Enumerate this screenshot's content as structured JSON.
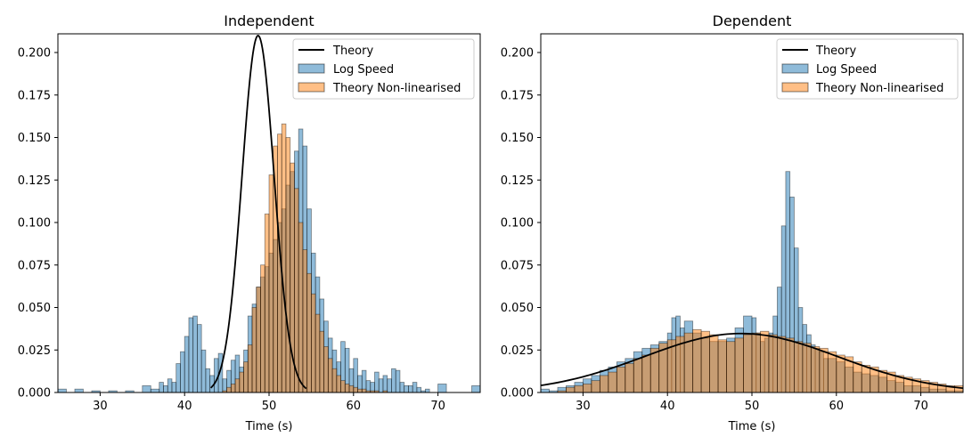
{
  "colors": {
    "log_speed_fill": "#1f77b4",
    "non_linearised_fill": "#ff7f0e",
    "theory_line": "#000000",
    "bar_edge": "#000000"
  },
  "chart_data": [
    {
      "type": "area",
      "title": "Independent",
      "xlabel": "Time (s)",
      "ylabel": "",
      "xlim": [
        25,
        75
      ],
      "ylim": [
        0,
        0.211
      ],
      "xticks": [
        30,
        40,
        50,
        60,
        70
      ],
      "yticks": [
        0.0,
        0.025,
        0.05,
        0.075,
        0.1,
        0.125,
        0.15,
        0.175,
        0.2
      ],
      "xtick_labels": [
        "30",
        "40",
        "50",
        "60",
        "70"
      ],
      "ytick_labels": [
        "0.000",
        "0.025",
        "0.050",
        "0.075",
        "0.100",
        "0.125",
        "0.150",
        "0.175",
        "0.200"
      ],
      "grid": false,
      "legend_position": "top-right",
      "legend": [
        "Theory",
        "Log Speed",
        "Theory Non-linearised"
      ],
      "series": [
        {
          "name": "Log Speed",
          "kind": "step-histogram",
          "x": [
            25,
            26,
            27,
            28,
            29,
            30,
            31,
            32,
            33,
            34,
            35,
            36,
            37,
            37.5,
            38,
            38.5,
            39,
            39.5,
            40,
            40.5,
            41,
            41.5,
            42,
            42.5,
            43,
            43.5,
            44,
            44.5,
            45,
            45.5,
            46,
            46.5,
            47,
            47.5,
            48,
            48.5,
            49,
            49.5,
            50,
            50.5,
            51,
            51.5,
            52,
            52.5,
            53,
            53.5,
            54,
            54.5,
            55,
            55.5,
            56,
            56.5,
            57,
            57.5,
            58,
            58.5,
            59,
            59.5,
            60,
            60.5,
            61,
            61.5,
            62,
            62.5,
            63,
            63.5,
            64,
            64.5,
            65,
            65.5,
            66,
            66.5,
            67,
            67.5,
            68,
            68.5,
            69,
            70,
            71,
            72,
            73,
            74,
            75
          ],
          "values": [
            0.002,
            0.0,
            0.002,
            0.0,
            0.001,
            0.0,
            0.001,
            0.0,
            0.001,
            0.0,
            0.004,
            0.002,
            0.006,
            0.004,
            0.008,
            0.006,
            0.017,
            0.024,
            0.033,
            0.044,
            0.045,
            0.04,
            0.025,
            0.014,
            0.01,
            0.02,
            0.023,
            0.008,
            0.013,
            0.019,
            0.022,
            0.015,
            0.025,
            0.045,
            0.052,
            0.062,
            0.068,
            0.074,
            0.082,
            0.09,
            0.1,
            0.108,
            0.122,
            0.13,
            0.142,
            0.155,
            0.145,
            0.108,
            0.082,
            0.068,
            0.055,
            0.042,
            0.032,
            0.025,
            0.018,
            0.03,
            0.026,
            0.014,
            0.02,
            0.01,
            0.013,
            0.007,
            0.006,
            0.012,
            0.008,
            0.01,
            0.008,
            0.014,
            0.013,
            0.006,
            0.004,
            0.004,
            0.006,
            0.003,
            0.001,
            0.002,
            0.0,
            0.005,
            0.0,
            0.0,
            0.0,
            0.004,
            0.0
          ]
        },
        {
          "name": "Theory Non-linearised",
          "kind": "step-histogram",
          "x": [
            44.5,
            45,
            45.5,
            46,
            46.5,
            47,
            47.5,
            48,
            48.5,
            49,
            49.5,
            50,
            50.5,
            51,
            51.5,
            52,
            52.5,
            53,
            53.5,
            54,
            54.5,
            55,
            55.5,
            56,
            56.5,
            57,
            57.5,
            58,
            58.5,
            59,
            59.5,
            60,
            60.5,
            61,
            61.5,
            62,
            62.5,
            63,
            63.5,
            64,
            64.5,
            65,
            65.5
          ],
          "values": [
            0.001,
            0.003,
            0.005,
            0.008,
            0.012,
            0.018,
            0.028,
            0.05,
            0.062,
            0.075,
            0.105,
            0.128,
            0.145,
            0.152,
            0.158,
            0.15,
            0.135,
            0.12,
            0.1,
            0.084,
            0.07,
            0.058,
            0.046,
            0.036,
            0.027,
            0.02,
            0.014,
            0.01,
            0.007,
            0.005,
            0.004,
            0.003,
            0.002,
            0.002,
            0.001,
            0.001,
            0.001,
            0.0,
            0.001,
            0.0,
            0.0,
            0.0,
            0.0
          ]
        },
        {
          "name": "Theory",
          "kind": "line",
          "mean": 48.7,
          "sd": 1.9,
          "x_range": [
            43.1,
            54.4
          ]
        }
      ]
    },
    {
      "type": "area",
      "title": "Dependent",
      "xlabel": "Time (s)",
      "ylabel": "",
      "xlim": [
        25,
        75
      ],
      "ylim": [
        0,
        0.211
      ],
      "xticks": [
        30,
        40,
        50,
        60,
        70
      ],
      "yticks": [
        0.0,
        0.025,
        0.05,
        0.075,
        0.1,
        0.125,
        0.15,
        0.175,
        0.2
      ],
      "xtick_labels": [
        "30",
        "40",
        "50",
        "60",
        "70"
      ],
      "ytick_labels": [
        "0.000",
        "0.025",
        "0.050",
        "0.075",
        "0.100",
        "0.125",
        "0.150",
        "0.175",
        "0.200"
      ],
      "grid": false,
      "legend_position": "top-right",
      "legend": [
        "Theory",
        "Log Speed",
        "Theory Non-linearised"
      ],
      "series": [
        {
          "name": "Log Speed",
          "kind": "step-histogram",
          "x": [
            25,
            26,
            27,
            28,
            29,
            30,
            31,
            32,
            33,
            34,
            35,
            36,
            37,
            38,
            39,
            40,
            40.5,
            41,
            41.5,
            42,
            43,
            44,
            45,
            46,
            47,
            48,
            49,
            50,
            50.5,
            51,
            51.5,
            52,
            52.5,
            53,
            53.5,
            54,
            54.5,
            55,
            55.5,
            56,
            56.5,
            57,
            57.5,
            58,
            58.5,
            59,
            60,
            61,
            62,
            63,
            64,
            65,
            66,
            67,
            68,
            69,
            70,
            71,
            72,
            73,
            74,
            75
          ],
          "values": [
            0.002,
            0.001,
            0.003,
            0.004,
            0.006,
            0.008,
            0.01,
            0.013,
            0.015,
            0.018,
            0.02,
            0.024,
            0.026,
            0.028,
            0.03,
            0.035,
            0.044,
            0.045,
            0.038,
            0.042,
            0.035,
            0.032,
            0.03,
            0.03,
            0.032,
            0.038,
            0.045,
            0.044,
            0.035,
            0.03,
            0.032,
            0.035,
            0.045,
            0.062,
            0.098,
            0.13,
            0.115,
            0.085,
            0.05,
            0.04,
            0.034,
            0.028,
            0.026,
            0.024,
            0.02,
            0.02,
            0.018,
            0.015,
            0.012,
            0.011,
            0.01,
            0.009,
            0.007,
            0.006,
            0.004,
            0.004,
            0.003,
            0.002,
            0.002,
            0.001,
            0.001,
            0.001
          ]
        },
        {
          "name": "Theory Non-linearised",
          "kind": "step-histogram",
          "x": [
            27,
            28,
            29,
            30,
            31,
            32,
            33,
            34,
            35,
            36,
            37,
            38,
            39,
            40,
            41,
            42,
            43,
            44,
            45,
            46,
            47,
            48,
            49,
            50,
            51,
            52,
            53,
            54,
            55,
            56,
            57,
            58,
            59,
            60,
            61,
            62,
            63,
            64,
            65,
            66,
            67,
            68,
            69,
            70,
            71,
            72,
            73,
            74,
            75
          ],
          "values": [
            0.001,
            0.003,
            0.004,
            0.005,
            0.007,
            0.01,
            0.012,
            0.015,
            0.017,
            0.02,
            0.022,
            0.026,
            0.029,
            0.031,
            0.033,
            0.035,
            0.037,
            0.036,
            0.034,
            0.031,
            0.03,
            0.032,
            0.034,
            0.035,
            0.036,
            0.034,
            0.033,
            0.032,
            0.03,
            0.029,
            0.027,
            0.026,
            0.024,
            0.022,
            0.021,
            0.018,
            0.016,
            0.015,
            0.013,
            0.012,
            0.01,
            0.009,
            0.008,
            0.007,
            0.006,
            0.005,
            0.004,
            0.004,
            0.003
          ]
        },
        {
          "name": "Theory",
          "kind": "line",
          "mean": 48.7,
          "sd": 11.5,
          "x_range": [
            25,
            75
          ]
        }
      ]
    }
  ]
}
